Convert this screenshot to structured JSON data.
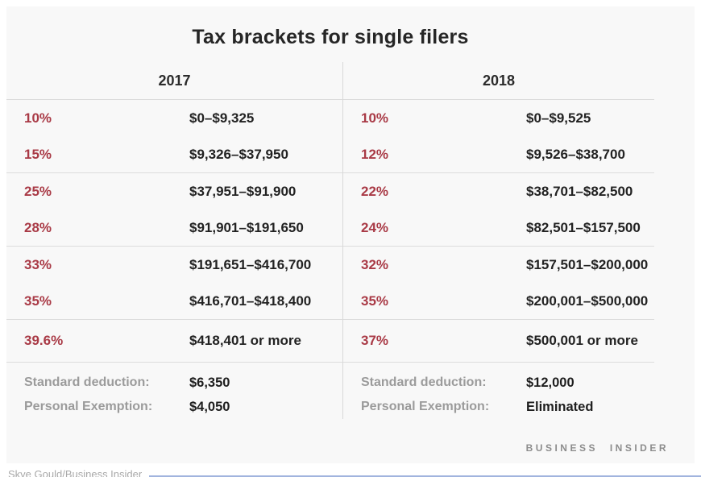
{
  "chart_data": {
    "type": "table",
    "title": "Tax brackets for single filers",
    "labels": {
      "standard_deduction": "Standard deduction:",
      "personal_exemption": "Personal Exemption:"
    },
    "years": [
      {
        "label": "2017",
        "brackets": [
          {
            "rate": "10%",
            "range": "$0–$9,325"
          },
          {
            "rate": "15%",
            "range": "$9,326–$37,950"
          },
          {
            "rate": "25%",
            "range": "$37,951–$91,900"
          },
          {
            "rate": "28%",
            "range": "$91,901–$191,650"
          },
          {
            "rate": "33%",
            "range": "$191,651–$416,700"
          },
          {
            "rate": "35%",
            "range": "$416,701–$418,400"
          },
          {
            "rate": "39.6%",
            "range": "$418,401 or more"
          }
        ],
        "standard_deduction": "$6,350",
        "personal_exemption": "$4,050"
      },
      {
        "label": "2018",
        "brackets": [
          {
            "rate": "10%",
            "range": "$0–$9,525"
          },
          {
            "rate": "12%",
            "range": "$9,526–$38,700"
          },
          {
            "rate": "22%",
            "range": "$38,701–$82,500"
          },
          {
            "rate": "24%",
            "range": "$82,501–$157,500"
          },
          {
            "rate": "32%",
            "range": "$157,501–$200,000"
          },
          {
            "rate": "35%",
            "range": "$200,001–$500,000"
          },
          {
            "rate": "37%",
            "range": "$500,001 or more"
          }
        ],
        "standard_deduction": "$12,000",
        "personal_exemption": "Eliminated"
      }
    ]
  },
  "branding": "BUSINESS INSIDER",
  "credit": "Skye Gould/Business Insider",
  "colors": {
    "rate_red": "#a93a46",
    "text_dark": "#222222",
    "label_gray": "#9b9b9b",
    "card_background": "#f8f8f8",
    "separator": "#dcdcdc",
    "bottom_line_blue": "#91a7d8"
  }
}
